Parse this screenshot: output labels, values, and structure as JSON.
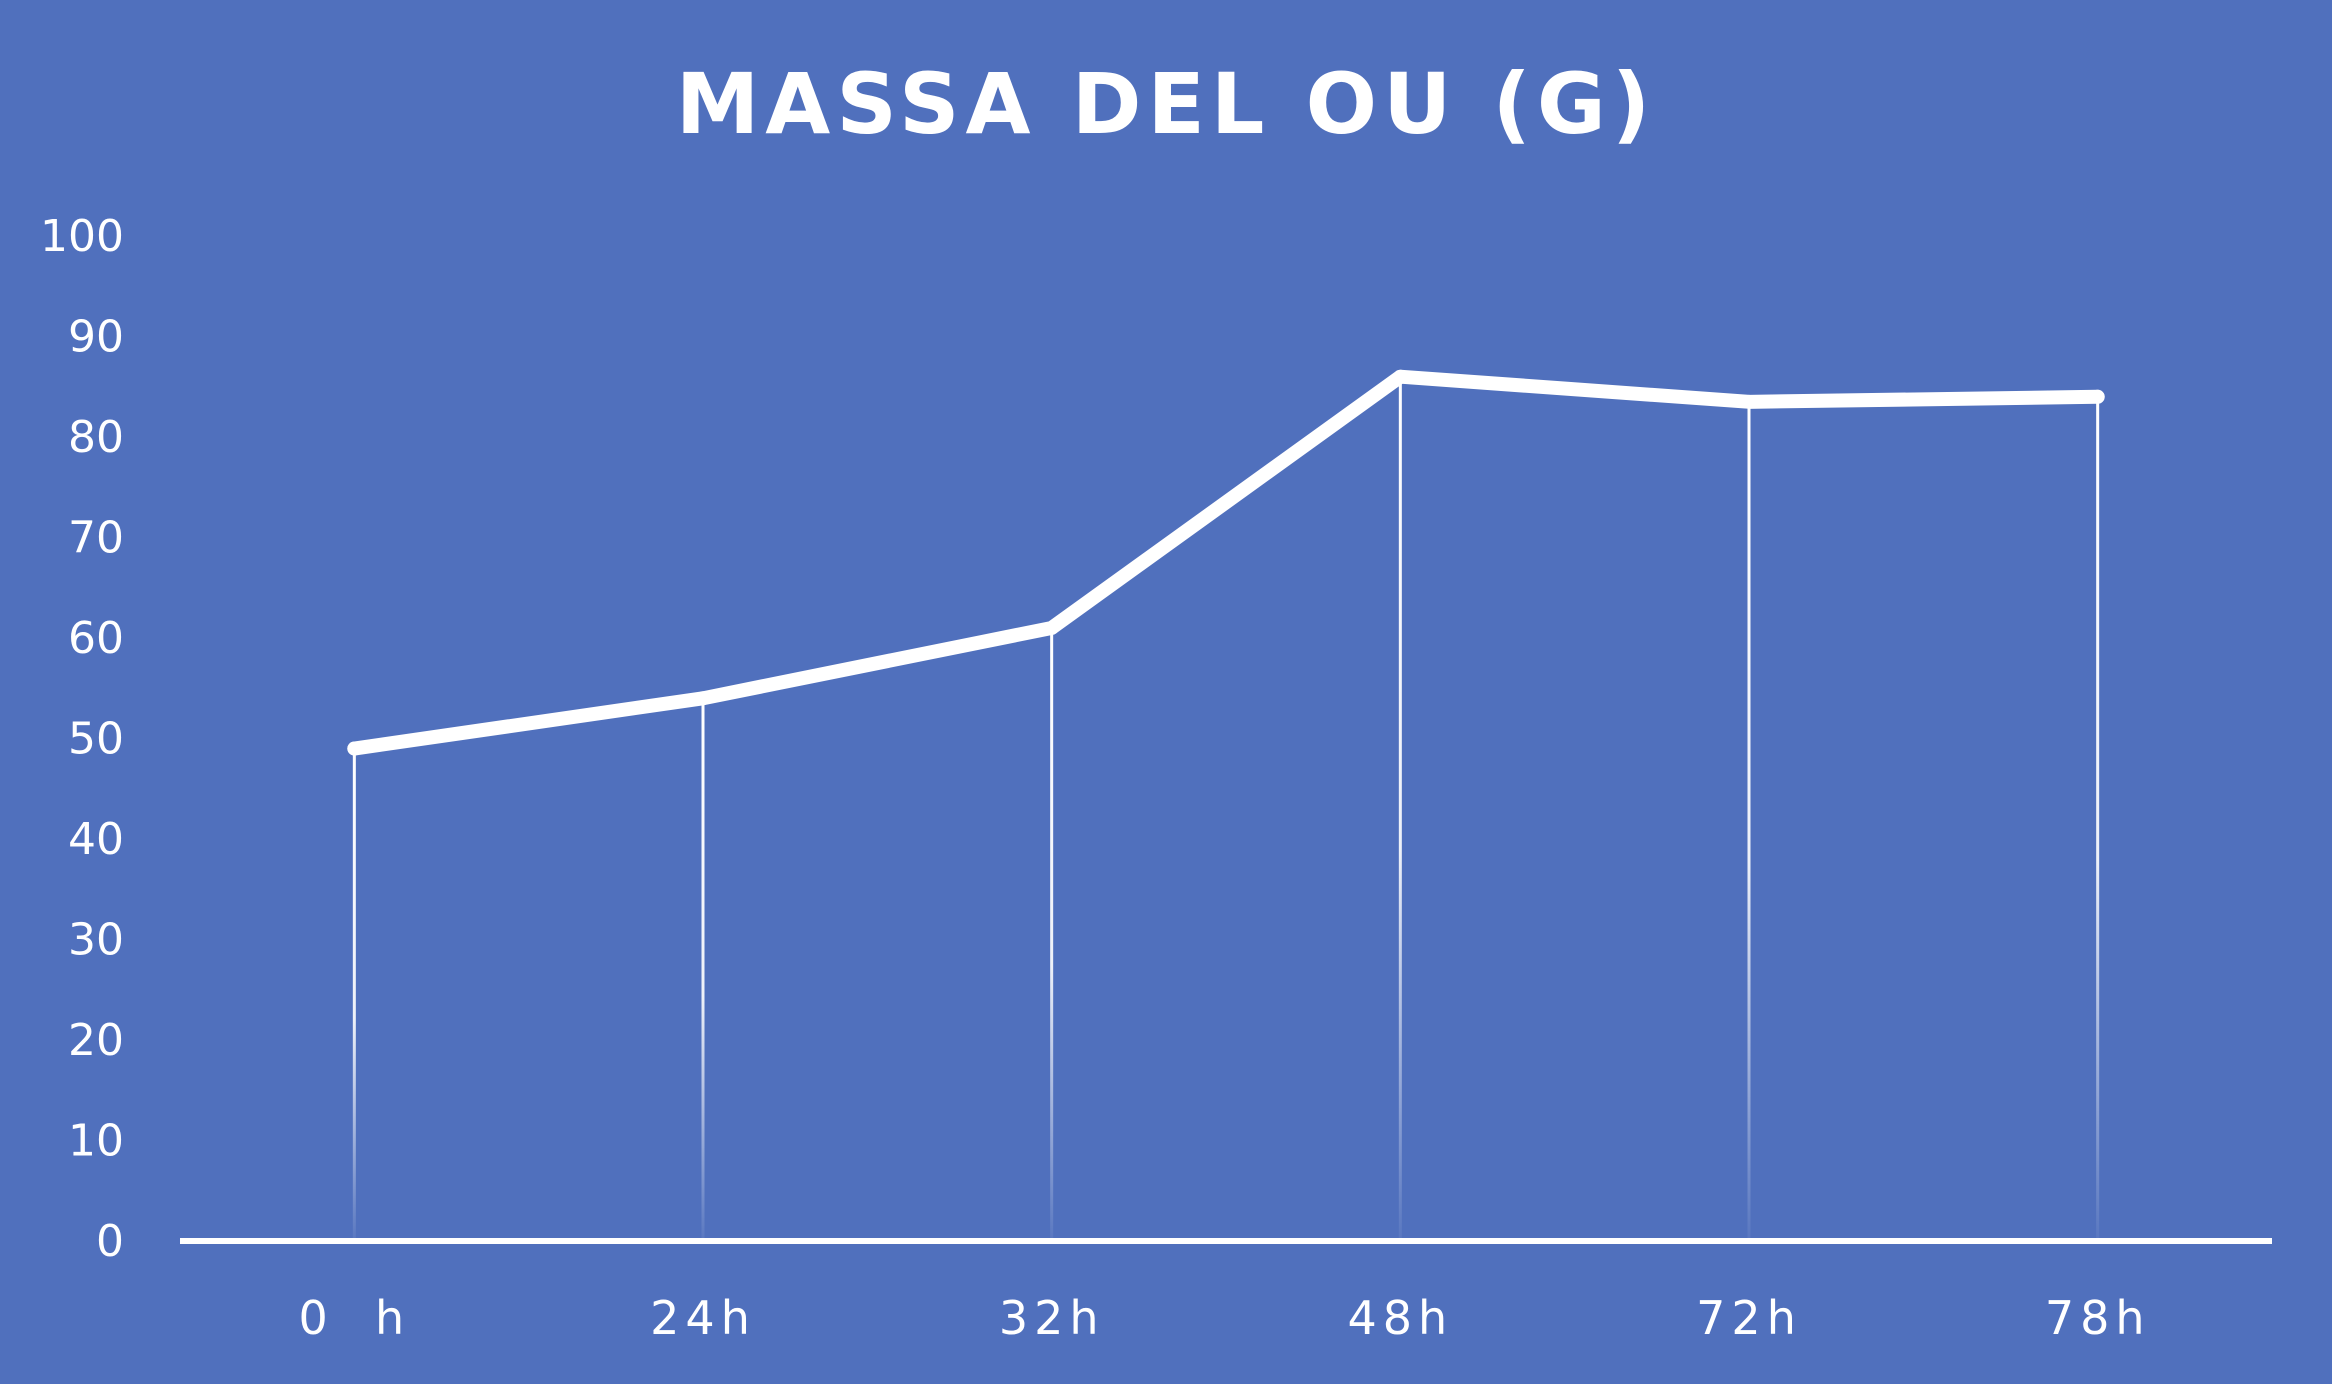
{
  "colors": {
    "background": "#5070bd",
    "foreground": "#ffffff"
  },
  "chart_data": {
    "type": "line",
    "title": "MASSA DEL OU (G)",
    "xlabel": "",
    "ylabel": "",
    "categories": [
      "0  h",
      "24h",
      "32h",
      "48h",
      "72h",
      "78h"
    ],
    "series": [
      {
        "values": [
          49,
          54,
          61,
          86,
          83.5,
          84
        ]
      }
    ],
    "ylim": [
      0,
      100
    ],
    "yticks": [
      "0",
      "10",
      "20",
      "30",
      "40",
      "50",
      "60",
      "70",
      "80",
      "90",
      "100"
    ],
    "drop_lines": true,
    "grid": false,
    "legend": "none"
  }
}
